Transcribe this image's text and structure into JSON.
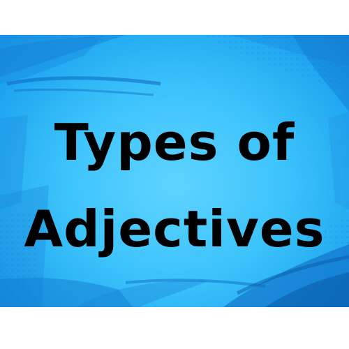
{
  "title": {
    "line1": "Types of",
    "line2": "Adjectives"
  },
  "colors": {
    "background": "#ffffff",
    "banner": "#3cc3fb",
    "brush": "#1a7fd6",
    "text": "#000000"
  }
}
